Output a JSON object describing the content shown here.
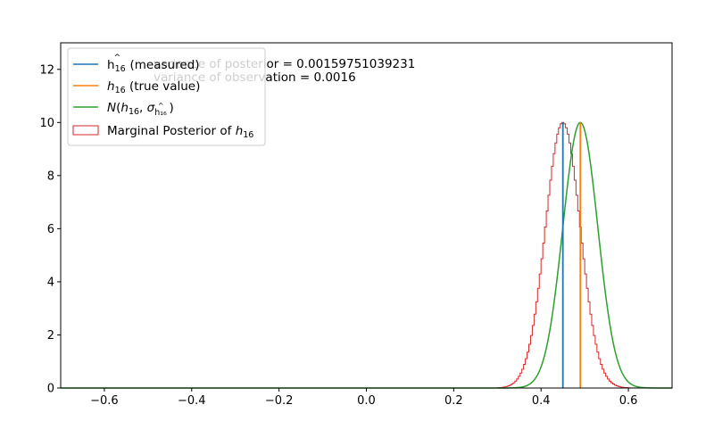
{
  "chart_data": {
    "type": "line",
    "xlim": [
      -0.7,
      0.7
    ],
    "ylim": [
      0,
      13
    ],
    "x_ticks": [
      -0.6,
      -0.4,
      -0.2,
      0.0,
      0.2,
      0.4,
      0.6
    ],
    "x_tick_labels": [
      "−0.6",
      "−0.4",
      "−0.2",
      "0.0",
      "0.2",
      "0.4",
      "0.6"
    ],
    "y_ticks": [
      0,
      2,
      4,
      6,
      8,
      10,
      12
    ],
    "y_tick_labels": [
      "0",
      "2",
      "4",
      "6",
      "8",
      "10",
      "12"
    ],
    "grid": false,
    "legend_position": "top-left",
    "annotations": [
      "variance of posterior  = 0.00159751039231",
      "variance of observation = 0.0016"
    ],
    "series": [
      {
        "name": "ĥ16 (measured)",
        "kind": "vline",
        "x": 0.45,
        "y_top": 10.0,
        "color": "#1f77b4"
      },
      {
        "name": "h16 (true value)",
        "kind": "vline",
        "x": 0.49,
        "y_top": 10.0,
        "color": "#ff7f0e"
      },
      {
        "name": "N(h16, σĥ16)",
        "kind": "gaussian",
        "mean": 0.49,
        "sd": 0.04,
        "peak": 10.0,
        "color": "#2ca02c"
      },
      {
        "name": "Marginal Posterior of h16",
        "kind": "histogram",
        "mean": 0.45,
        "sd": 0.04,
        "peak": 10.0,
        "bin_width": 0.004,
        "color": "#d62728"
      }
    ]
  }
}
